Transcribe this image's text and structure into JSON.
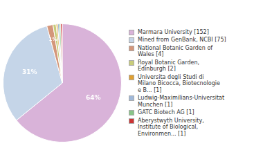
{
  "chart_data": {
    "type": "pie",
    "categories": [
      "Marmara University [152]",
      "Mined from GenBank, NCBI [75]",
      "National Botanic Garden of\nWales [4]",
      "Royal Botanic Garden,\nEdinburgh [2]",
      "Universita degli Studi di\nMilano Bicocca, Biotecnologie\ne B... [1]",
      "Ludwig-Maximilians-Universitat\nMunchen [1]",
      "GATC Biotech AG [1]",
      "Aberystwyth University,\nInstitute of Biological,\nEnvironmen... [1]"
    ],
    "values": [
      152,
      75,
      4,
      2,
      1,
      1,
      1,
      1
    ],
    "colors": [
      "#d9b3d9",
      "#c5d5e8",
      "#d4967a",
      "#c8cc7a",
      "#e0a030",
      "#a0b8d8",
      "#88c488",
      "#cc3333"
    ],
    "annotations": [
      "64%",
      "31%",
      "1%"
    ],
    "legend": "right"
  }
}
